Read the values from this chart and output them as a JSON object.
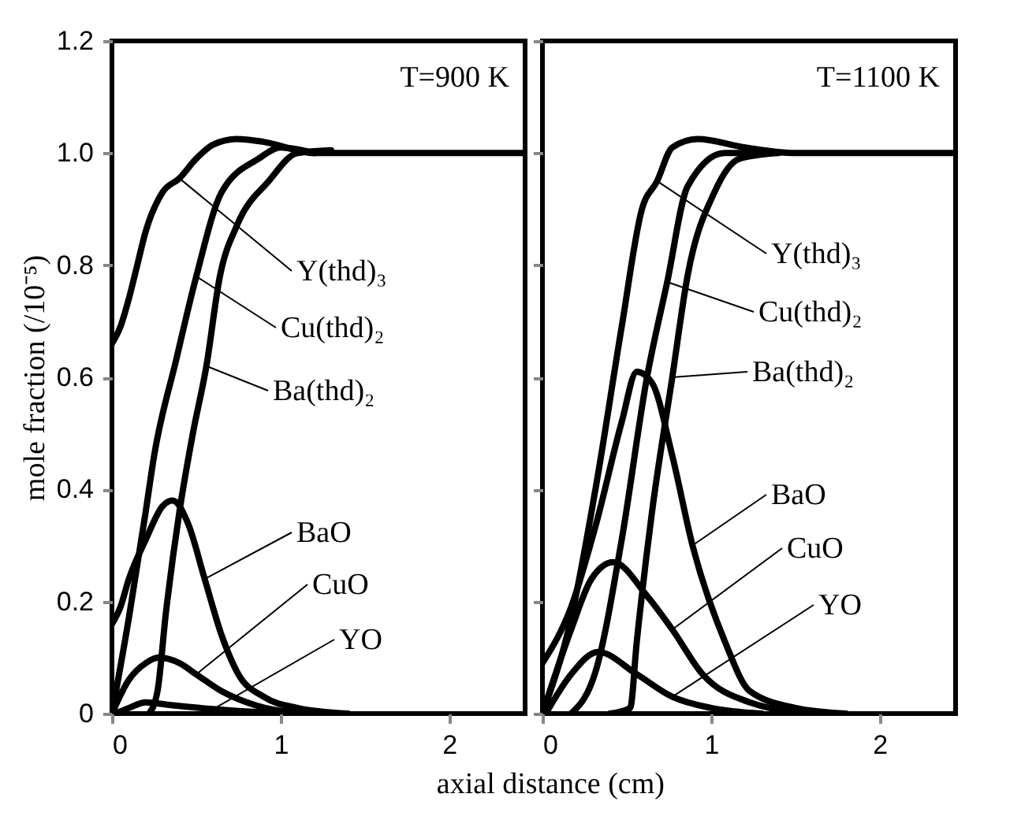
{
  "chart_data": [
    {
      "type": "line",
      "title": "T=900 K",
      "xlabel": "axial distance (cm)",
      "ylabel": "mole fraction (/10⁻⁵)",
      "xlim": [
        0,
        2.45
      ],
      "ylim": [
        0,
        1.2
      ],
      "xticks": [
        0,
        1,
        2
      ],
      "yticks": [
        0,
        0.2,
        0.4,
        0.6,
        0.8,
        {
          "value": 1,
          "label": "1.0"
        },
        1.2
      ],
      "marker": "none",
      "line_style": "solid",
      "grid": false,
      "series": [
        {
          "color": "#000000",
          "x": [
            0,
            0.05,
            0.1,
            0.15,
            0.2,
            0.3,
            0.4,
            0.5,
            0.6,
            0.74,
            0.9,
            1.2,
            2.45
          ],
          "values": [
            0.66,
            0.69,
            0.74,
            0.8,
            0.86,
            0.93,
            0.955,
            0.99,
            1.015,
            1.025,
            1.02,
            1.0,
            1.0
          ]
        },
        {
          "color": "#000000",
          "x": [
            0,
            0.1,
            0.2,
            0.25,
            0.38,
            0.5,
            0.65,
            0.87,
            1.0,
            1.2
          ],
          "values": [
            0,
            0.17,
            0.36,
            0.46,
            0.63,
            0.78,
            0.93,
            0.99,
            1.01,
            1.0
          ]
        },
        {
          "color": "#000000",
          "x": [
            0.22,
            0.27,
            0.32,
            0.4,
            0.48,
            0.56,
            0.64,
            0.74,
            0.93,
            1.1,
            1.3
          ],
          "values": [
            0,
            0.04,
            0.18,
            0.36,
            0.5,
            0.62,
            0.78,
            0.87,
            0.95,
            1.0,
            1.005
          ]
        },
        {
          "color": "#000000",
          "x": [
            0,
            0.05,
            0.1,
            0.2,
            0.3,
            0.36,
            0.45,
            0.55,
            0.65,
            0.75,
            0.9,
            1.1,
            1.4
          ],
          "values": [
            0.16,
            0.19,
            0.24,
            0.31,
            0.37,
            0.38,
            0.34,
            0.24,
            0.14,
            0.07,
            0.03,
            0.01,
            0
          ]
        },
        {
          "color": "#000000",
          "x": [
            0,
            0.1,
            0.2,
            0.28,
            0.4,
            0.5,
            0.65,
            0.8,
            1.0,
            1.3
          ],
          "values": [
            0,
            0.06,
            0.09,
            0.1,
            0.09,
            0.07,
            0.04,
            0.02,
            0.005,
            0
          ]
        },
        {
          "color": "#000000",
          "x": [
            0.02,
            0.1,
            0.2,
            0.35,
            0.6,
            0.9,
            1.2
          ],
          "values": [
            0,
            0.01,
            0.02,
            0.015,
            0.008,
            0.002,
            0
          ]
        }
      ],
      "annotations": [
        {
          "text": "Y(thd)₃",
          "x": 0.4,
          "y": 0.955
        },
        {
          "text": "Cu(thd)₂",
          "x": 0.5,
          "y": 0.78
        },
        {
          "text": "Ba(thd)₂",
          "x": 0.56,
          "y": 0.62
        },
        {
          "text": "BaO",
          "x": 0.55,
          "y": 0.24
        },
        {
          "text": "CuO",
          "x": 0.5,
          "y": 0.07
        },
        {
          "text": "YO",
          "x": 0.6,
          "y": 0.008
        }
      ]
    },
    {
      "type": "line",
      "title": "T=1100 K",
      "xlim": [
        0,
        2.45
      ],
      "ylim": [
        0,
        1.2
      ],
      "xticks": [
        0,
        1,
        2
      ],
      "yticks": [
        0,
        0.2,
        0.4,
        0.6,
        0.8,
        1,
        1.2
      ],
      "tick_labels": "x",
      "marker": "none",
      "line_style": "solid",
      "grid": false,
      "series": [
        {
          "color": "#000000",
          "x": [
            0,
            0.17,
            0.32,
            0.47,
            0.59,
            0.68,
            0.77,
            0.92,
            1.2,
            1.5,
            2.45
          ],
          "values": [
            0,
            0.17,
            0.41,
            0.69,
            0.9,
            0.95,
            1.01,
            1.025,
            1.01,
            1.0,
            1.0
          ]
        },
        {
          "color": "#000000",
          "x": [
            0.17,
            0.32,
            0.47,
            0.62,
            0.74,
            0.86,
            1.08,
            1.3
          ],
          "values": [
            0,
            0.08,
            0.31,
            0.6,
            0.77,
            0.94,
            1.0,
            1.0
          ]
        },
        {
          "color": "#000000",
          "x": [
            0.4,
            0.52,
            0.56,
            0.65,
            0.77,
            0.86,
            1.02,
            1.17,
            1.4
          ],
          "values": [
            0,
            0.01,
            0.13,
            0.36,
            0.6,
            0.78,
            0.93,
            0.99,
            1.0
          ]
        },
        {
          "color": "#000000",
          "x": [
            0,
            0.17,
            0.32,
            0.47,
            0.56,
            0.65,
            0.77,
            0.89,
            1.08,
            1.23,
            1.5,
            1.8
          ],
          "values": [
            0.09,
            0.19,
            0.34,
            0.52,
            0.61,
            0.59,
            0.46,
            0.3,
            0.13,
            0.04,
            0.01,
            0
          ]
        },
        {
          "color": "#000000",
          "x": [
            0,
            0.17,
            0.29,
            0.42,
            0.62,
            0.77,
            0.95,
            1.23,
            1.6
          ],
          "values": [
            0,
            0.15,
            0.24,
            0.27,
            0.21,
            0.15,
            0.07,
            0.02,
            0
          ]
        },
        {
          "color": "#000000",
          "x": [
            0.02,
            0.17,
            0.33,
            0.56,
            0.77,
            1.0,
            1.3
          ],
          "values": [
            0,
            0.07,
            0.11,
            0.07,
            0.03,
            0.01,
            0
          ]
        }
      ],
      "annotations": [
        {
          "text": "Y(thd)₃",
          "x": 0.68,
          "y": 0.95
        },
        {
          "text": "Cu(thd)₂",
          "x": 0.74,
          "y": 0.77
        },
        {
          "text": "Ba(thd)₂",
          "x": 0.77,
          "y": 0.6
        },
        {
          "text": "BaO",
          "x": 0.89,
          "y": 0.3
        },
        {
          "text": "CuO",
          "x": 0.77,
          "y": 0.15
        },
        {
          "text": "YO",
          "x": 0.77,
          "y": 0.03
        }
      ]
    }
  ]
}
